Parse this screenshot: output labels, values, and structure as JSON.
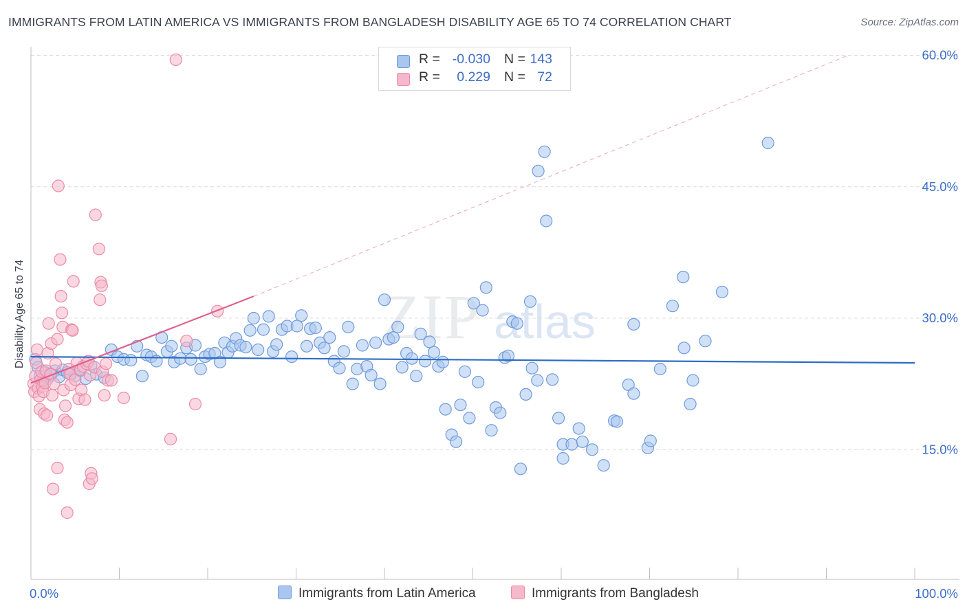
{
  "title": "IMMIGRANTS FROM LATIN AMERICA VS IMMIGRANTS FROM BANGLADESH DISABILITY AGE 65 TO 74 CORRELATION CHART",
  "source": "Source: ZipAtlas.com",
  "watermark": {
    "zip": "ZIP",
    "atlas": "atlas"
  },
  "legend": {
    "rows": [
      {
        "r_label": "R =",
        "r_value": "-0.030",
        "n_label": "N =",
        "n_value": "143"
      },
      {
        "r_label": "R =",
        "r_value": "0.229",
        "n_label": "N =",
        "n_value": "72"
      }
    ]
  },
  "colors": {
    "blue_fill": "#a9c6ee",
    "blue_stroke": "#6f9bdc",
    "blue_line": "#2b6cc4",
    "pink_fill": "#f6b8cb",
    "pink_stroke": "#ec8aa9",
    "pink_line": "#e0608b",
    "axis_text": "#3d6fc7",
    "grid": "#dcdcdc"
  },
  "chart_data": {
    "type": "scatter",
    "title": "IMMIGRANTS FROM LATIN AMERICA VS IMMIGRANTS FROM BANGLADESH DISABILITY AGE 65 TO 74 CORRELATION CHART",
    "xlabel": "",
    "ylabel": "Disability Age 65 to 74",
    "xlim": [
      0,
      100
    ],
    "ylim": [
      0,
      62
    ],
    "x_tick_labels": [
      "0.0%",
      "100.0%"
    ],
    "y_ticks": [
      15,
      30,
      45,
      60
    ],
    "y_tick_labels": [
      "15.0%",
      "30.0%",
      "45.0%",
      "60.0%"
    ],
    "grid": "horizontal dashed",
    "legend_position": "top-center",
    "series": [
      {
        "name": "Immigrants from Latin America",
        "color": "#a9c6ee",
        "trend": {
          "x": [
            0,
            100
          ],
          "y": [
            25.6,
            24.9
          ]
        },
        "points": [
          [
            0.5,
            25.3
          ],
          [
            0.8,
            24.4
          ],
          [
            1.0,
            23.4
          ],
          [
            1.3,
            22.8
          ],
          [
            1.6,
            23.8
          ],
          [
            1.9,
            23.1
          ],
          [
            2.3,
            23.6
          ],
          [
            2.7,
            24.0
          ],
          [
            3.2,
            23.3
          ],
          [
            3.6,
            24.1
          ],
          [
            4.1,
            23.8
          ],
          [
            4.5,
            23.6
          ],
          [
            5.0,
            23.4
          ],
          [
            5.6,
            24.0
          ],
          [
            6.2,
            23.1
          ],
          [
            6.8,
            24.6
          ],
          [
            7.4,
            23.6
          ],
          [
            8.3,
            23.2
          ],
          [
            9.1,
            26.4
          ],
          [
            9.8,
            25.6
          ],
          [
            10.5,
            25.3
          ],
          [
            11.3,
            25.2
          ],
          [
            12.0,
            26.8
          ],
          [
            12.6,
            23.4
          ],
          [
            13.1,
            25.8
          ],
          [
            13.6,
            25.6
          ],
          [
            14.2,
            25.1
          ],
          [
            14.8,
            27.8
          ],
          [
            15.4,
            26.2
          ],
          [
            15.9,
            26.8
          ],
          [
            16.2,
            25.0
          ],
          [
            16.9,
            25.4
          ],
          [
            17.6,
            26.6
          ],
          [
            18.1,
            25.3
          ],
          [
            18.6,
            26.9
          ],
          [
            19.2,
            24.2
          ],
          [
            19.7,
            25.6
          ],
          [
            20.2,
            25.9
          ],
          [
            20.8,
            26.0
          ],
          [
            21.4,
            25.0
          ],
          [
            21.9,
            27.2
          ],
          [
            22.3,
            26.1
          ],
          [
            22.8,
            26.8
          ],
          [
            23.2,
            27.7
          ],
          [
            23.7,
            26.9
          ],
          [
            24.3,
            26.7
          ],
          [
            24.8,
            28.6
          ],
          [
            25.2,
            30.0
          ],
          [
            25.7,
            26.4
          ],
          [
            26.3,
            28.7
          ],
          [
            26.9,
            30.2
          ],
          [
            27.4,
            26.2
          ],
          [
            27.8,
            27.0
          ],
          [
            28.4,
            28.7
          ],
          [
            29.0,
            29.1
          ],
          [
            29.5,
            25.6
          ],
          [
            30.1,
            29.1
          ],
          [
            30.6,
            30.3
          ],
          [
            31.2,
            26.8
          ],
          [
            31.6,
            28.8
          ],
          [
            32.2,
            28.9
          ],
          [
            32.7,
            27.2
          ],
          [
            33.2,
            26.6
          ],
          [
            33.8,
            27.8
          ],
          [
            34.3,
            25.1
          ],
          [
            34.9,
            24.3
          ],
          [
            35.4,
            26.2
          ],
          [
            35.9,
            29.0
          ],
          [
            36.4,
            22.5
          ],
          [
            36.9,
            24.2
          ],
          [
            37.5,
            26.9
          ],
          [
            38.0,
            24.5
          ],
          [
            38.5,
            23.5
          ],
          [
            39.0,
            27.2
          ],
          [
            39.5,
            22.5
          ],
          [
            40.0,
            32.1
          ],
          [
            40.5,
            27.6
          ],
          [
            41.0,
            27.8
          ],
          [
            41.5,
            29.0
          ],
          [
            42.0,
            24.4
          ],
          [
            42.5,
            26.0
          ],
          [
            43.1,
            25.4
          ],
          [
            43.6,
            23.4
          ],
          [
            44.1,
            28.2
          ],
          [
            44.6,
            25.1
          ],
          [
            45.1,
            27.3
          ],
          [
            45.6,
            26.1
          ],
          [
            46.1,
            24.5
          ],
          [
            46.6,
            25.0
          ],
          [
            46.9,
            19.6
          ],
          [
            47.6,
            16.7
          ],
          [
            48.1,
            15.9
          ],
          [
            48.6,
            20.1
          ],
          [
            49.1,
            23.9
          ],
          [
            49.6,
            18.6
          ],
          [
            50.1,
            31.7
          ],
          [
            50.6,
            22.7
          ],
          [
            51.1,
            30.9
          ],
          [
            51.5,
            33.5
          ],
          [
            52.1,
            17.2
          ],
          [
            52.6,
            19.8
          ],
          [
            53.1,
            19.2
          ],
          [
            53.6,
            25.5
          ],
          [
            54.0,
            25.7
          ],
          [
            54.5,
            29.6
          ],
          [
            55.0,
            29.4
          ],
          [
            55.4,
            12.8
          ],
          [
            56.0,
            21.3
          ],
          [
            56.5,
            31.9
          ],
          [
            56.7,
            24.3
          ],
          [
            57.3,
            22.9
          ],
          [
            58.1,
            49.0
          ],
          [
            57.4,
            46.8
          ],
          [
            58.3,
            41.1
          ],
          [
            59.0,
            23.0
          ],
          [
            59.7,
            18.6
          ],
          [
            60.2,
            15.6
          ],
          [
            60.2,
            14.0
          ],
          [
            61.2,
            15.6
          ],
          [
            62.0,
            17.4
          ],
          [
            62.4,
            15.9
          ],
          [
            63.5,
            15.0
          ],
          [
            64.8,
            13.2
          ],
          [
            66.0,
            18.3
          ],
          [
            66.3,
            18.2
          ],
          [
            67.6,
            22.4
          ],
          [
            68.2,
            21.4
          ],
          [
            68.2,
            29.3
          ],
          [
            69.8,
            15.2
          ],
          [
            70.1,
            16.0
          ],
          [
            71.2,
            24.2
          ],
          [
            72.6,
            31.4
          ],
          [
            73.8,
            34.7
          ],
          [
            73.9,
            26.6
          ],
          [
            74.6,
            20.2
          ],
          [
            74.9,
            22.9
          ],
          [
            76.3,
            27.4
          ],
          [
            78.2,
            33.0
          ],
          [
            83.4,
            50.0
          ]
        ]
      },
      {
        "name": "Immigrants from Bangladesh",
        "color": "#f6b8cb",
        "trend": {
          "x": [
            0,
            25.2
          ],
          "y": [
            22.6,
            32.5
          ]
        },
        "trend_extension": {
          "x": [
            25.2,
            92.5
          ],
          "y": [
            32.5,
            60.0
          ]
        },
        "points": [
          [
            0.3,
            22.5
          ],
          [
            0.4,
            21.6
          ],
          [
            0.5,
            23.4
          ],
          [
            0.6,
            24.9
          ],
          [
            0.7,
            26.4
          ],
          [
            0.8,
            22.0
          ],
          [
            0.9,
            21.1
          ],
          [
            1.0,
            19.6
          ],
          [
            1.1,
            23.0
          ],
          [
            1.2,
            23.9
          ],
          [
            1.3,
            22.2
          ],
          [
            1.4,
            21.6
          ],
          [
            1.5,
            19.1
          ],
          [
            1.6,
            22.6
          ],
          [
            1.7,
            24.0
          ],
          [
            1.8,
            18.9
          ],
          [
            1.9,
            26.0
          ],
          [
            2.0,
            29.4
          ],
          [
            2.2,
            23.6
          ],
          [
            2.3,
            27.1
          ],
          [
            2.4,
            21.2
          ],
          [
            2.5,
            10.5
          ],
          [
            2.6,
            22.5
          ],
          [
            2.8,
            24.8
          ],
          [
            3.0,
            27.6
          ],
          [
            3.0,
            12.9
          ],
          [
            3.1,
            45.1
          ],
          [
            3.3,
            36.7
          ],
          [
            3.4,
            32.5
          ],
          [
            3.5,
            30.6
          ],
          [
            3.6,
            29.0
          ],
          [
            3.7,
            21.8
          ],
          [
            3.8,
            18.4
          ],
          [
            3.9,
            20.0
          ],
          [
            4.1,
            7.8
          ],
          [
            4.1,
            18.1
          ],
          [
            4.3,
            24.2
          ],
          [
            4.4,
            23.6
          ],
          [
            4.5,
            22.4
          ],
          [
            4.6,
            28.7
          ],
          [
            4.7,
            28.6
          ],
          [
            4.8,
            34.2
          ],
          [
            5.0,
            23.0
          ],
          [
            5.2,
            24.9
          ],
          [
            5.4,
            20.8
          ],
          [
            5.6,
            24.1
          ],
          [
            5.7,
            21.8
          ],
          [
            5.9,
            24.5
          ],
          [
            6.1,
            20.7
          ],
          [
            6.3,
            24.8
          ],
          [
            6.5,
            25.1
          ],
          [
            6.6,
            11.1
          ],
          [
            6.7,
            23.5
          ],
          [
            6.8,
            12.3
          ],
          [
            6.9,
            11.7
          ],
          [
            7.2,
            24.4
          ],
          [
            7.3,
            41.8
          ],
          [
            7.7,
            37.9
          ],
          [
            7.8,
            32.1
          ],
          [
            7.9,
            34.1
          ],
          [
            8.0,
            33.7
          ],
          [
            8.1,
            23.9
          ],
          [
            8.3,
            21.2
          ],
          [
            8.5,
            24.8
          ],
          [
            8.7,
            22.9
          ],
          [
            9.1,
            22.9
          ],
          [
            10.5,
            20.9
          ],
          [
            15.8,
            16.2
          ],
          [
            16.4,
            59.5
          ],
          [
            17.6,
            27.4
          ],
          [
            18.6,
            20.2
          ],
          [
            21.1,
            30.8
          ]
        ]
      }
    ]
  }
}
